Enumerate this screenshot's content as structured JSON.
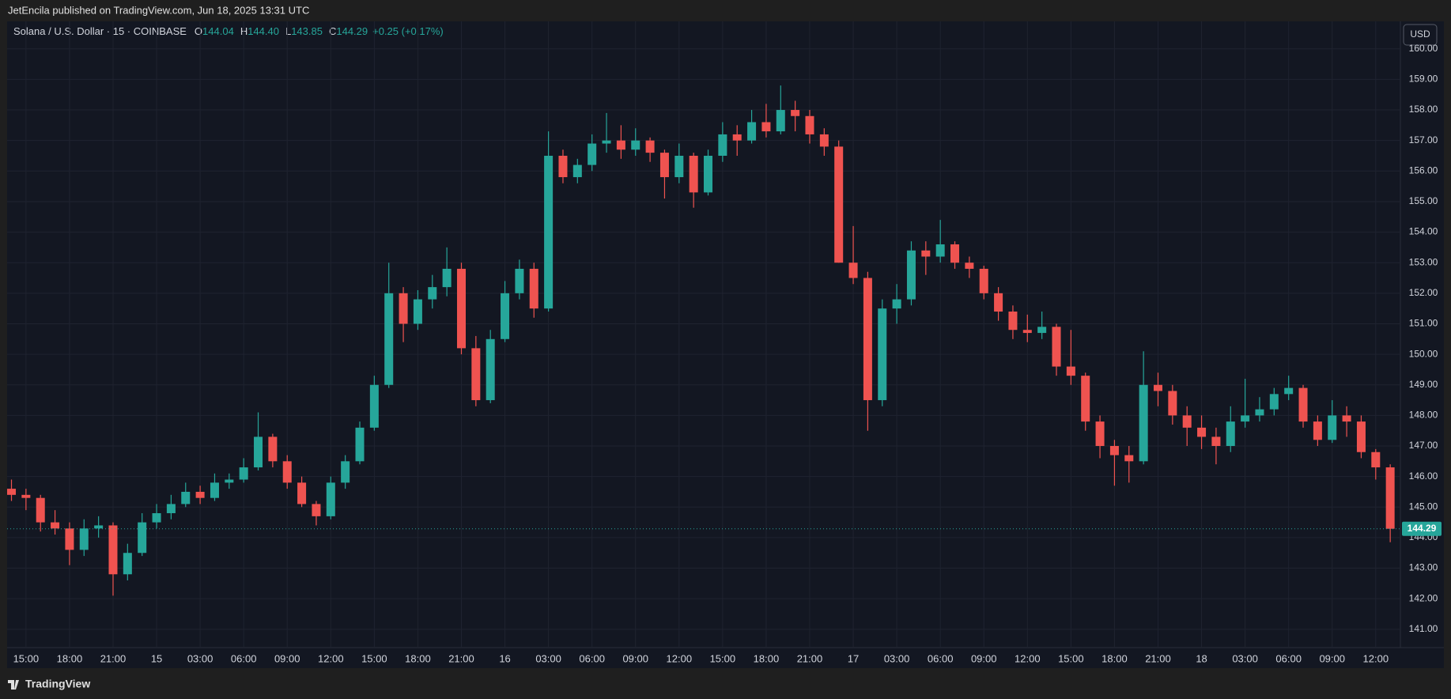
{
  "header": {
    "publisher": "JetEncila published on TradingView.com, Jun 18, 2025 13:31 UTC",
    "symbol": "Solana / U.S. Dollar · 15 · COINBASE",
    "ohlc": [
      {
        "label": "O",
        "value": "144.04"
      },
      {
        "label": "H",
        "value": "144.40"
      },
      {
        "label": "L",
        "value": "143.85"
      },
      {
        "label": "C",
        "value": "144.29"
      }
    ],
    "change": "+0.25 (+0.17%)",
    "currency": "USD"
  },
  "footer": {
    "brand": "TradingView"
  },
  "chart_data": {
    "type": "candlestick",
    "up_color": "#26a69a",
    "down_color": "#ef5350",
    "grid": true,
    "candles": [
      [
        145.6,
        145.9,
        145.2,
        145.4
      ],
      [
        145.4,
        145.6,
        144.9,
        145.3
      ],
      [
        145.3,
        145.4,
        144.2,
        144.5
      ],
      [
        144.5,
        144.9,
        144.1,
        144.3
      ],
      [
        144.3,
        144.5,
        143.1,
        143.6
      ],
      [
        143.6,
        144.6,
        143.4,
        144.3
      ],
      [
        144.3,
        144.7,
        144.0,
        144.4
      ],
      [
        144.4,
        144.5,
        142.1,
        142.8
      ],
      [
        142.8,
        143.8,
        142.6,
        143.5
      ],
      [
        143.5,
        144.8,
        143.4,
        144.5
      ],
      [
        144.5,
        145.1,
        144.3,
        144.8
      ],
      [
        144.8,
        145.4,
        144.6,
        145.1
      ],
      [
        145.1,
        145.8,
        145.0,
        145.5
      ],
      [
        145.5,
        145.7,
        145.1,
        145.3
      ],
      [
        145.3,
        146.1,
        145.2,
        145.8
      ],
      [
        145.8,
        146.1,
        145.6,
        145.9
      ],
      [
        145.9,
        146.6,
        145.8,
        146.3
      ],
      [
        146.3,
        148.1,
        146.2,
        147.3
      ],
      [
        147.3,
        147.4,
        146.3,
        146.5
      ],
      [
        146.5,
        146.7,
        145.6,
        145.8
      ],
      [
        145.8,
        146.0,
        145.0,
        145.1
      ],
      [
        145.1,
        145.2,
        144.4,
        144.7
      ],
      [
        144.7,
        146.0,
        144.6,
        145.8
      ],
      [
        145.8,
        146.7,
        145.6,
        146.5
      ],
      [
        146.5,
        147.8,
        146.4,
        147.6
      ],
      [
        147.6,
        149.3,
        147.5,
        149.0
      ],
      [
        149.0,
        153.0,
        148.9,
        152.0
      ],
      [
        152.0,
        152.2,
        150.4,
        151.0
      ],
      [
        151.0,
        152.1,
        150.8,
        151.8
      ],
      [
        151.8,
        152.6,
        151.5,
        152.2
      ],
      [
        152.2,
        153.5,
        151.9,
        152.8
      ],
      [
        152.8,
        153.0,
        150.0,
        150.2
      ],
      [
        150.2,
        150.6,
        148.3,
        148.5
      ],
      [
        148.5,
        150.8,
        148.4,
        150.5
      ],
      [
        150.5,
        152.4,
        150.4,
        152.0
      ],
      [
        152.0,
        153.1,
        151.8,
        152.8
      ],
      [
        152.8,
        153.0,
        151.2,
        151.5
      ],
      [
        151.5,
        157.3,
        151.4,
        156.5
      ],
      [
        156.5,
        156.7,
        155.6,
        155.8
      ],
      [
        155.8,
        156.4,
        155.6,
        156.2
      ],
      [
        156.2,
        157.2,
        156.0,
        156.9
      ],
      [
        156.9,
        157.9,
        156.6,
        157.0
      ],
      [
        157.0,
        157.5,
        156.4,
        156.7
      ],
      [
        156.7,
        157.4,
        156.5,
        157.0
      ],
      [
        157.0,
        157.1,
        156.3,
        156.6
      ],
      [
        156.6,
        156.7,
        155.1,
        155.8
      ],
      [
        155.8,
        156.9,
        155.6,
        156.5
      ],
      [
        156.5,
        156.6,
        154.8,
        155.3
      ],
      [
        155.3,
        156.7,
        155.2,
        156.5
      ],
      [
        156.5,
        157.6,
        156.3,
        157.2
      ],
      [
        157.2,
        157.5,
        156.5,
        157.0
      ],
      [
        157.0,
        158.0,
        156.9,
        157.6
      ],
      [
        157.6,
        158.2,
        157.1,
        157.3
      ],
      [
        157.3,
        158.8,
        157.2,
        158.0
      ],
      [
        158.0,
        158.3,
        157.3,
        157.8
      ],
      [
        157.8,
        158.0,
        156.9,
        157.2
      ],
      [
        157.2,
        157.4,
        156.5,
        156.8
      ],
      [
        156.8,
        157.0,
        153.0,
        153.0
      ],
      [
        153.0,
        154.2,
        152.3,
        152.5
      ],
      [
        152.5,
        152.7,
        147.5,
        148.5
      ],
      [
        148.5,
        151.8,
        148.3,
        151.5
      ],
      [
        151.5,
        152.3,
        151.0,
        151.8
      ],
      [
        151.8,
        153.7,
        151.6,
        153.4
      ],
      [
        153.4,
        153.7,
        152.6,
        153.2
      ],
      [
        153.2,
        154.4,
        153.0,
        153.6
      ],
      [
        153.6,
        153.7,
        152.8,
        153.0
      ],
      [
        153.0,
        153.2,
        152.5,
        152.8
      ],
      [
        152.8,
        152.9,
        151.8,
        152.0
      ],
      [
        152.0,
        152.2,
        151.1,
        151.4
      ],
      [
        151.4,
        151.6,
        150.5,
        150.8
      ],
      [
        150.8,
        151.3,
        150.4,
        150.7
      ],
      [
        150.7,
        151.4,
        150.5,
        150.9
      ],
      [
        150.9,
        151.0,
        149.3,
        149.6
      ],
      [
        149.6,
        150.8,
        149.0,
        149.3
      ],
      [
        149.3,
        149.4,
        147.5,
        147.8
      ],
      [
        147.8,
        148.0,
        146.6,
        147.0
      ],
      [
        147.0,
        147.2,
        145.7,
        146.7
      ],
      [
        146.7,
        147.0,
        145.8,
        146.5
      ],
      [
        146.5,
        150.1,
        146.4,
        149.0
      ],
      [
        149.0,
        149.4,
        148.3,
        148.8
      ],
      [
        148.8,
        149.0,
        147.7,
        148.0
      ],
      [
        148.0,
        148.3,
        147.0,
        147.6
      ],
      [
        147.6,
        148.0,
        146.9,
        147.3
      ],
      [
        147.3,
        147.6,
        146.4,
        147.0
      ],
      [
        147.0,
        148.3,
        146.8,
        147.8
      ],
      [
        147.8,
        149.2,
        147.6,
        148.0
      ],
      [
        148.0,
        148.6,
        147.8,
        148.2
      ],
      [
        148.2,
        148.9,
        148.0,
        148.7
      ],
      [
        148.7,
        149.3,
        148.5,
        148.9
      ],
      [
        148.9,
        149.0,
        147.6,
        147.8
      ],
      [
        147.8,
        148.0,
        147.0,
        147.2
      ],
      [
        147.2,
        148.5,
        147.1,
        148.0
      ],
      [
        148.0,
        148.3,
        147.3,
        147.8
      ],
      [
        147.8,
        148.0,
        146.6,
        146.8
      ],
      [
        146.8,
        146.9,
        145.9,
        146.3
      ],
      [
        146.3,
        146.4,
        143.85,
        144.29
      ]
    ],
    "last_price": 144.29,
    "xlim": [
      -0.3,
      95.7
    ],
    "xticks": [
      {
        "value": 1,
        "label": "15:00"
      },
      {
        "value": 4,
        "label": "18:00"
      },
      {
        "value": 7,
        "label": "21:00"
      },
      {
        "value": 10,
        "label": "15"
      },
      {
        "value": 13,
        "label": "03:00"
      },
      {
        "value": 16,
        "label": "06:00"
      },
      {
        "value": 19,
        "label": "09:00"
      },
      {
        "value": 22,
        "label": "12:00"
      },
      {
        "value": 25,
        "label": "15:00"
      },
      {
        "value": 28,
        "label": "18:00"
      },
      {
        "value": 31,
        "label": "21:00"
      },
      {
        "value": 34,
        "label": "16"
      },
      {
        "value": 37,
        "label": "03:00"
      },
      {
        "value": 40,
        "label": "06:00"
      },
      {
        "value": 43,
        "label": "09:00"
      },
      {
        "value": 46,
        "label": "12:00"
      },
      {
        "value": 49,
        "label": "15:00"
      },
      {
        "value": 52,
        "label": "18:00"
      },
      {
        "value": 55,
        "label": "21:00"
      },
      {
        "value": 58,
        "label": "17"
      },
      {
        "value": 61,
        "label": "03:00"
      },
      {
        "value": 64,
        "label": "06:00"
      },
      {
        "value": 67,
        "label": "09:00"
      },
      {
        "value": 70,
        "label": "12:00"
      },
      {
        "value": 73,
        "label": "15:00"
      },
      {
        "value": 76,
        "label": "18:00"
      },
      {
        "value": 79,
        "label": "21:00"
      },
      {
        "value": 82,
        "label": "18"
      },
      {
        "value": 85,
        "label": "03:00"
      },
      {
        "value": 88,
        "label": "06:00"
      },
      {
        "value": 91,
        "label": "09:00"
      },
      {
        "value": 94,
        "label": "12:00"
      }
    ],
    "ylim": [
      140.4,
      160.9
    ],
    "yticks": [
      {
        "value": 141,
        "label": "141.00"
      },
      {
        "value": 142,
        "label": "142.00"
      },
      {
        "value": 143,
        "label": "143.00"
      },
      {
        "value": 144,
        "label": "144.00"
      },
      {
        "value": 145,
        "label": "145.00"
      },
      {
        "value": 146,
        "label": "146.00"
      },
      {
        "value": 147,
        "label": "147.00"
      },
      {
        "value": 148,
        "label": "148.00"
      },
      {
        "value": 149,
        "label": "149.00"
      },
      {
        "value": 150,
        "label": "150.00"
      },
      {
        "value": 151,
        "label": "151.00"
      },
      {
        "value": 152,
        "label": "152.00"
      },
      {
        "value": 153,
        "label": "153.00"
      },
      {
        "value": 154,
        "label": "154.00"
      },
      {
        "value": 155,
        "label": "155.00"
      },
      {
        "value": 156,
        "label": "156.00"
      },
      {
        "value": 157,
        "label": "157.00"
      },
      {
        "value": 158,
        "label": "158.00"
      },
      {
        "value": 159,
        "label": "159.00"
      },
      {
        "value": 160,
        "label": "160.00"
      }
    ]
  }
}
